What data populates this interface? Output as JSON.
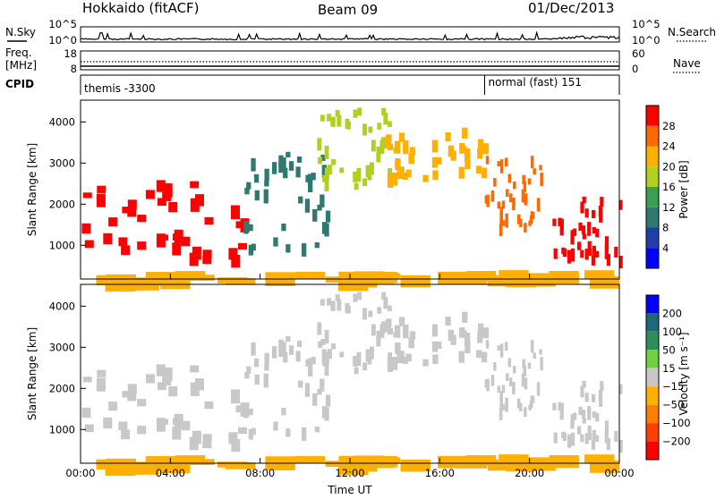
{
  "header": {
    "title": "Hokkaido (fitACF)",
    "beam": "Beam 09",
    "date": "01/Dec/2013"
  },
  "top_panels": {
    "nsky_label": "N.Sky",
    "nsearch_label": "N.Search",
    "nsky_ticks": [
      "10^5",
      "10^0"
    ],
    "nsearch_ticks": [
      "10^5",
      "10^0"
    ],
    "freq_label": "Freq.",
    "freq_unit": "[MHz]",
    "freq_ticks": [
      "18",
      "8"
    ],
    "nave_label": "Nave",
    "nave_ticks": [
      "60",
      "0"
    ],
    "cpid_label": "CPID",
    "cpid_segments": [
      {
        "label": "themis -3300",
        "start_hour": 0,
        "end_hour": 18.0
      },
      {
        "label": "normal (fast) 151",
        "start_hour": 18.0,
        "end_hour": 24
      }
    ]
  },
  "power_colorbar": {
    "label": "Power [dB]",
    "ticks": [
      "28",
      "24",
      "20",
      "16",
      "12",
      "8",
      "4"
    ],
    "colors": [
      "#ff0000",
      "#ff6a00",
      "#ffb000",
      "#b0d020",
      "#3aa050",
      "#2f7a70",
      "#2040a8",
      "#0000ff"
    ]
  },
  "velocity_colorbar": {
    "label": "Velocity [m s⁻¹]",
    "ticks": [
      "200",
      "100",
      "50",
      "15",
      "−15",
      "−50",
      "−100",
      "−200"
    ],
    "colors": [
      "#0000ff",
      "#206878",
      "#2f8f5a",
      "#70d040",
      "#c8c8c8",
      "#ffb000",
      "#ff8000",
      "#ff4000",
      "#ff0000"
    ]
  },
  "chart_data": {
    "type": "heatmap",
    "xlabel": "Time UT",
    "ylabel": "Slant Range [km]",
    "x_ticks": [
      "00:00",
      "04:00",
      "08:00",
      "12:00",
      "16:00",
      "20:00",
      "00:00"
    ],
    "x_range_hours": [
      0,
      24
    ],
    "y_ticks": [
      "1000",
      "2000",
      "3000",
      "4000"
    ],
    "y_range_km": [
      180,
      4530
    ],
    "scatter_regions": [
      {
        "hours": [
          0,
          7.2
        ],
        "km": [
          700,
          2700
        ],
        "power_db": 28,
        "velocity": "-15 to 15"
      },
      {
        "hours": [
          7.2,
          11.0
        ],
        "km": [
          1000,
          3300
        ],
        "power_db": 8,
        "velocity": "-15 to 15"
      },
      {
        "hours": [
          10.5,
          14.0
        ],
        "km": [
          2500,
          4400
        ],
        "power_db": 16,
        "velocity": "-15 to 15"
      },
      {
        "hours": [
          13.5,
          18.0
        ],
        "km": [
          2700,
          3900
        ],
        "power_db": 20,
        "velocity": "-15 to 15"
      },
      {
        "hours": [
          18.0,
          20.5
        ],
        "km": [
          1500,
          3200
        ],
        "power_db": 24,
        "velocity": "-15 to 15"
      },
      {
        "hours": [
          21.0,
          24.0
        ],
        "km": [
          700,
          2200
        ],
        "power_db": 28,
        "velocity": "-15 to 15"
      },
      {
        "hours": [
          0,
          24
        ],
        "km": [
          200,
          400
        ],
        "power_db": 20,
        "velocity": "-50 to 50"
      }
    ]
  }
}
